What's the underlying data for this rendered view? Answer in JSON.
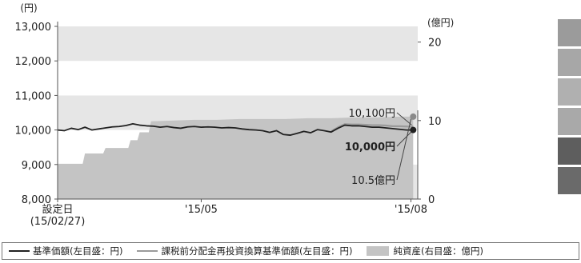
{
  "chart_data": {
    "type": "line",
    "title": "",
    "left_axis": {
      "unit": "(円)",
      "ticks": [
        8000,
        9000,
        10000,
        11000,
        12000,
        13000
      ],
      "tick_labels": [
        "8,000",
        "9,000",
        "10,000",
        "11,000",
        "12,000",
        "13,000"
      ],
      "ylim": [
        8000,
        13000
      ]
    },
    "right_axis": {
      "unit": "(億円)",
      "ticks": [
        0,
        10,
        20
      ],
      "tick_labels": [
        "0",
        "10",
        "20"
      ],
      "ylim": [
        0,
        22
      ]
    },
    "x_labels": [
      {
        "x": 0,
        "line1": "設定日",
        "line2": "(15/02/27)"
      },
      {
        "x": 63,
        "line1": "'15/05",
        "line2": ""
      },
      {
        "x": 155,
        "line1": "'15/08",
        "line2": ""
      }
    ],
    "x_range": [
      0,
      158
    ],
    "series": [
      {
        "name": "基準価額(左目盛：円)",
        "axis": "left",
        "color": "#222222",
        "x": [
          0,
          3,
          6,
          9,
          12,
          15,
          18,
          21,
          24,
          27,
          30,
          33,
          36,
          39,
          42,
          45,
          48,
          51,
          54,
          57,
          60,
          63,
          66,
          69,
          72,
          75,
          78,
          81,
          84,
          87,
          90,
          93,
          96,
          99,
          102,
          105,
          108,
          111,
          114,
          117,
          120,
          123,
          126,
          129,
          132,
          135,
          138,
          141,
          144,
          147,
          150,
          153,
          156
        ],
        "values": [
          10000,
          9980,
          10050,
          10010,
          10080,
          10000,
          10030,
          10060,
          10090,
          10100,
          10130,
          10180,
          10140,
          10120,
          10110,
          10080,
          10100,
          10070,
          10050,
          10090,
          10100,
          10080,
          10090,
          10080,
          10060,
          10070,
          10060,
          10030,
          10010,
          10000,
          9980,
          9930,
          9980,
          9870,
          9850,
          9900,
          9960,
          9920,
          10010,
          9980,
          9940,
          10050,
          10140,
          10120,
          10120,
          10100,
          10080,
          10080,
          10060,
          10040,
          10020,
          10000,
          10000
        ]
      },
      {
        "name": "課税前分配金再投資換算基準価額(左目盛：円)",
        "axis": "left",
        "color": "#9a9a9a",
        "x": [
          120,
          123,
          126,
          129,
          132,
          135,
          138,
          141,
          144,
          147,
          150,
          153,
          156
        ],
        "values": [
          9960,
          10080,
          10170,
          10160,
          10160,
          10150,
          10140,
          10140,
          10130,
          10110,
          10110,
          10100,
          10100
        ]
      },
      {
        "name": "純資産(右目盛：億円)",
        "axis": "right",
        "type": "area",
        "color": "#c4c4c4",
        "x": [
          0,
          11,
          12,
          20,
          21,
          31,
          32,
          35,
          36,
          40,
          41,
          50,
          60,
          70,
          80,
          90,
          100,
          110,
          120,
          130,
          140,
          150,
          156
        ],
        "values": [
          4.5,
          4.5,
          5.8,
          5.8,
          6.5,
          6.5,
          7.5,
          7.5,
          8.5,
          8.5,
          9.9,
          10.0,
          10.1,
          10.1,
          10.2,
          10.2,
          10.2,
          10.3,
          10.3,
          10.4,
          10.4,
          10.5,
          10.5
        ]
      }
    ],
    "annotations": [
      {
        "text": "10,100円",
        "series": "課税前分配金再投資換算基準価額(左目盛：円)",
        "value": 10100,
        "unit": "円"
      },
      {
        "text": "10,000円",
        "series": "基準価額(左目盛：円)",
        "value": 10000,
        "unit": "円"
      },
      {
        "text": "10.5億円",
        "series": "純資産(右目盛：億円)",
        "value": 10.5,
        "unit": "億円"
      }
    ]
  },
  "legend": {
    "items": [
      {
        "label": "基準価額(左目盛：円)",
        "kind": "line",
        "color": "#222222"
      },
      {
        "label": "課税前分配金再投資換算基準価額(左目盛：円)",
        "kind": "line",
        "color": "#9a9a9a"
      },
      {
        "label": "純資産(右目盛：億円)",
        "kind": "box",
        "color": "#c4c4c4"
      }
    ]
  },
  "side_blocks": {
    "colors": [
      "#9b9b9b",
      "#a7a7a7",
      "#b0b0b0",
      "#a9a9a9",
      "#5e5e5e",
      "#6a6a6a"
    ]
  }
}
